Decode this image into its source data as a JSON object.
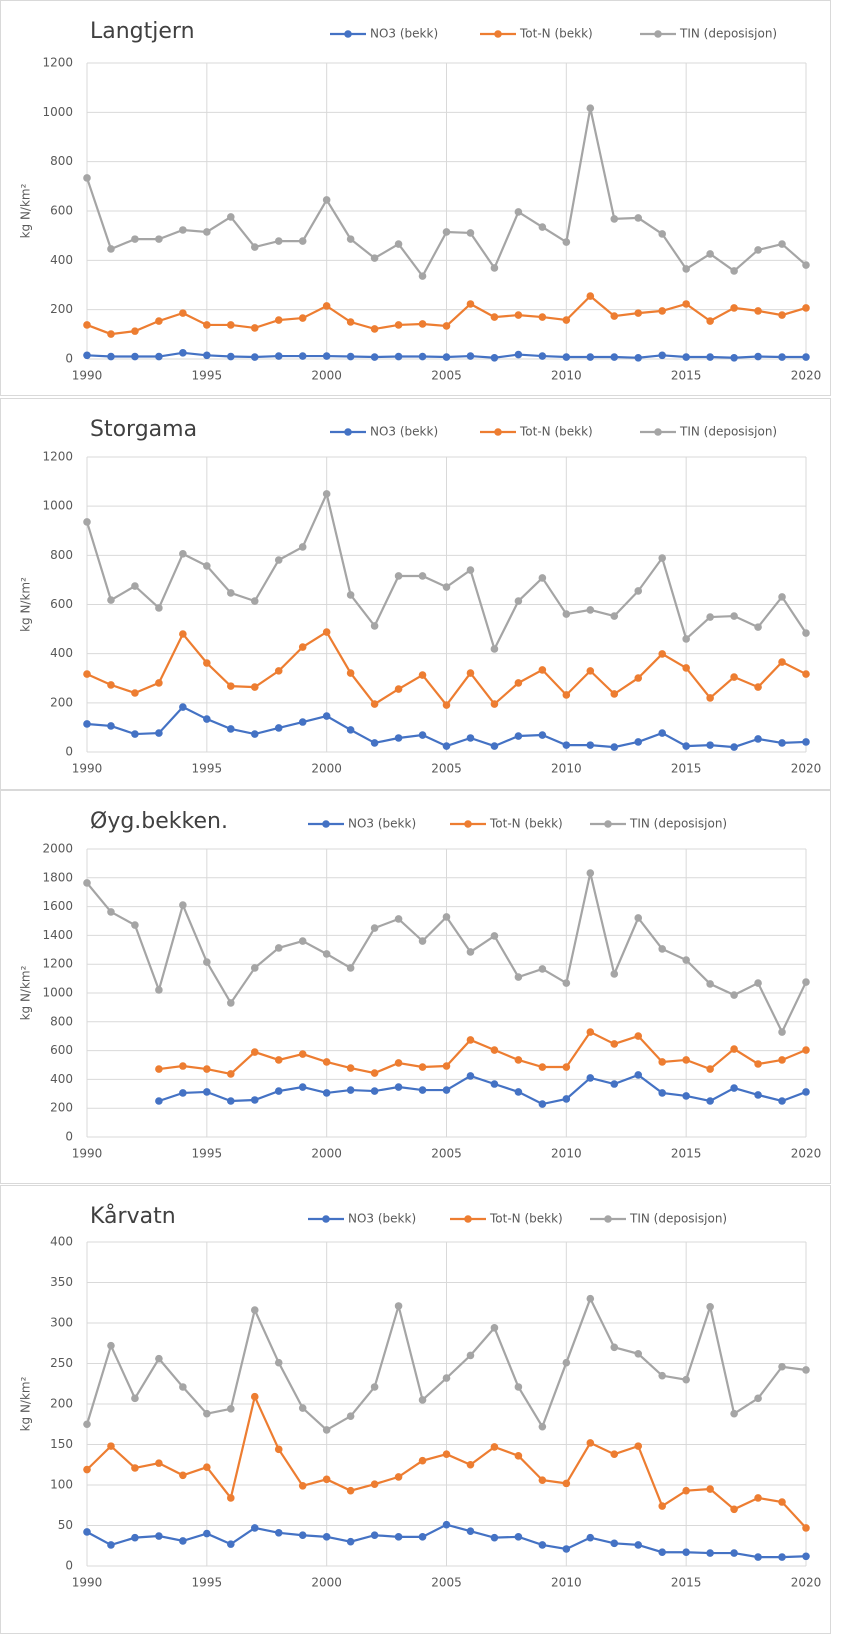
{
  "chart_data": [
    {
      "type": "line",
      "title": "Langtjern",
      "ylabel": "kg N/km²",
      "grid": true,
      "x": [
        1990,
        1991,
        1992,
        1993,
        1994,
        1995,
        1996,
        1997,
        1998,
        1999,
        2000,
        2001,
        2002,
        2003,
        2004,
        2005,
        2006,
        2007,
        2008,
        2009,
        2010,
        2011,
        2012,
        2013,
        2014,
        2015,
        2016,
        2017,
        2018,
        2019,
        2020
      ],
      "xlim": [
        1990,
        2020
      ],
      "xticks": [
        1990,
        1995,
        2000,
        2005,
        2010,
        2015,
        2020
      ],
      "ylim": [
        0,
        1200
      ],
      "yticks": [
        0,
        200,
        400,
        600,
        800,
        1000,
        1200
      ],
      "series": [
        {
          "name": "NO3 (bekk)",
          "color": "#4472c4",
          "values": [
            15,
            10,
            10,
            10,
            25,
            15,
            10,
            8,
            12,
            12,
            12,
            10,
            8,
            10,
            10,
            8,
            12,
            5,
            18,
            12,
            8,
            8,
            8,
            5,
            15,
            8,
            8,
            5,
            10,
            8,
            8
          ]
        },
        {
          "name": "Tot-N (bekk)",
          "color": "#ed7d31",
          "values": [
            138,
            101,
            113,
            154,
            186,
            138,
            138,
            126,
            158,
            166,
            215,
            150,
            122,
            138,
            142,
            134,
            223,
            170,
            178,
            170,
            158,
            255,
            174,
            186,
            195,
            223,
            154,
            207,
            195,
            178,
            207
          ]
        },
        {
          "name": "TIN (deposisjon)",
          "color": "#a5a5a5",
          "values": [
            734,
            446,
            486,
            486,
            523,
            515,
            576,
            454,
            478,
            478,
            645,
            486,
            409,
            466,
            336,
            515,
            511,
            369,
            596,
            535,
            474,
            1017,
            568,
            572,
            507,
            365,
            426,
            357,
            442,
            466,
            381
          ]
        }
      ]
    },
    {
      "type": "line",
      "title": "Storgama",
      "ylabel": "kg N/km²",
      "grid": true,
      "x": [
        1990,
        1991,
        1992,
        1993,
        1994,
        1995,
        1996,
        1997,
        1998,
        1999,
        2000,
        2001,
        2002,
        2003,
        2004,
        2005,
        2006,
        2007,
        2008,
        2009,
        2010,
        2011,
        2012,
        2013,
        2014,
        2015,
        2016,
        2017,
        2018,
        2019,
        2020
      ],
      "xlim": [
        1990,
        2020
      ],
      "xticks": [
        1990,
        1995,
        2000,
        2005,
        2010,
        2015,
        2020
      ],
      "ylim": [
        0,
        1200
      ],
      "yticks": [
        0,
        200,
        400,
        600,
        800,
        1000,
        1200
      ],
      "series": [
        {
          "name": "NO3 (bekk)",
          "color": "#4472c4",
          "values": [
            114,
            106,
            73,
            77,
            183,
            134,
            94,
            73,
            98,
            122,
            146,
            90,
            37,
            57,
            69,
            24,
            57,
            24,
            65,
            69,
            28,
            28,
            20,
            41,
            77,
            24,
            28,
            20,
            53,
            37,
            41
          ]
        },
        {
          "name": "Tot-N (bekk)",
          "color": "#ed7d31",
          "values": [
            317,
            273,
            240,
            281,
            480,
            362,
            268,
            264,
            330,
            427,
            488,
            321,
            195,
            256,
            313,
            191,
            321,
            195,
            281,
            334,
            232,
            330,
            236,
            301,
            399,
            342,
            220,
            305,
            264,
            366,
            317
          ]
        },
        {
          "name": "TIN (deposisjon)",
          "color": "#a5a5a5",
          "values": [
            936,
            618,
            675,
            586,
            806,
            757,
            647,
            614,
            781,
            834,
            1050,
            639,
            513,
            716,
            716,
            671,
            740,
            419,
            614,
            708,
            561,
            578,
            553,
            655,
            789,
            460,
            549,
            553,
            508,
            631,
            484
          ]
        }
      ]
    },
    {
      "type": "line",
      "title": "Øyg.bekken.",
      "ylabel": "kg N/km²",
      "grid": true,
      "x": [
        1990,
        1991,
        1992,
        1993,
        1994,
        1995,
        1996,
        1997,
        1998,
        1999,
        2000,
        2001,
        2002,
        2003,
        2004,
        2005,
        2006,
        2007,
        2008,
        2009,
        2010,
        2011,
        2012,
        2013,
        2014,
        2015,
        2016,
        2017,
        2018,
        2019,
        2020
      ],
      "xlim": [
        1990,
        2020
      ],
      "xticks": [
        1990,
        1995,
        2000,
        2005,
        2010,
        2015,
        2020
      ],
      "ylim": [
        0,
        2000
      ],
      "yticks": [
        0,
        200,
        400,
        600,
        800,
        1000,
        1200,
        1400,
        1600,
        1800,
        2000
      ],
      "series": [
        {
          "name": "NO3 (bekk)",
          "color": "#4472c4",
          "values": [
            null,
            null,
            null,
            250,
            306,
            313,
            250,
            257,
            319,
            347,
            306,
            326,
            319,
            347,
            326,
            326,
            424,
            368,
            313,
            229,
            264,
            410,
            368,
            431,
            306,
            285,
            250,
            340,
            292,
            250,
            313
          ]
        },
        {
          "name": "Tot-N (bekk)",
          "color": "#ed7d31",
          "values": [
            null,
            null,
            null,
            472,
            493,
            472,
            438,
            590,
            535,
            576,
            521,
            479,
            444,
            514,
            486,
            493,
            674,
            604,
            535,
            486,
            486,
            729,
            646,
            701,
            521,
            535,
            472,
            611,
            507,
            535,
            604
          ]
        },
        {
          "name": "TIN (deposisjon)",
          "color": "#a5a5a5",
          "values": [
            1764,
            1563,
            1472,
            1021,
            1611,
            1215,
            931,
            1174,
            1313,
            1361,
            1271,
            1174,
            1451,
            1514,
            1361,
            1528,
            1285,
            1396,
            1111,
            1167,
            1069,
            1833,
            1132,
            1521,
            1306,
            1229,
            1063,
            986,
            1069,
            729,
            1076
          ]
        }
      ]
    },
    {
      "type": "line",
      "title": "Kårvatn",
      "ylabel": "kg N/km²",
      "grid": true,
      "x": [
        1990,
        1991,
        1992,
        1993,
        1994,
        1995,
        1996,
        1997,
        1998,
        1999,
        2000,
        2001,
        2002,
        2003,
        2004,
        2005,
        2006,
        2007,
        2008,
        2009,
        2010,
        2011,
        2012,
        2013,
        2014,
        2015,
        2016,
        2017,
        2018,
        2019,
        2020
      ],
      "xlim": [
        1990,
        2020
      ],
      "xticks": [
        1990,
        1995,
        2000,
        2005,
        2010,
        2015,
        2020
      ],
      "ylim": [
        0,
        400
      ],
      "yticks": [
        0,
        50,
        100,
        150,
        200,
        250,
        300,
        350,
        400
      ],
      "series": [
        {
          "name": "NO3 (bekk)",
          "color": "#4472c4",
          "values": [
            42,
            26,
            35,
            37,
            31,
            40,
            27,
            47,
            41,
            38,
            36,
            30,
            38,
            36,
            36,
            51,
            43,
            35,
            36,
            26,
            21,
            35,
            28,
            26,
            17,
            17,
            16,
            16,
            11,
            11,
            12
          ]
        },
        {
          "name": "Tot-N (bekk)",
          "color": "#ed7d31",
          "values": [
            119,
            148,
            121,
            127,
            112,
            122,
            84,
            209,
            144,
            99,
            107,
            93,
            101,
            110,
            130,
            138,
            125,
            147,
            136,
            106,
            102,
            152,
            138,
            148,
            74,
            93,
            95,
            70,
            84,
            79,
            47
          ]
        },
        {
          "name": "TIN (deposisjon)",
          "color": "#a5a5a5",
          "values": [
            175,
            272,
            207,
            256,
            221,
            188,
            194,
            316,
            251,
            195,
            168,
            185,
            221,
            321,
            205,
            232,
            260,
            294,
            221,
            172,
            251,
            330,
            270,
            262,
            235,
            230,
            320,
            188,
            207,
            246,
            242
          ]
        }
      ]
    }
  ]
}
